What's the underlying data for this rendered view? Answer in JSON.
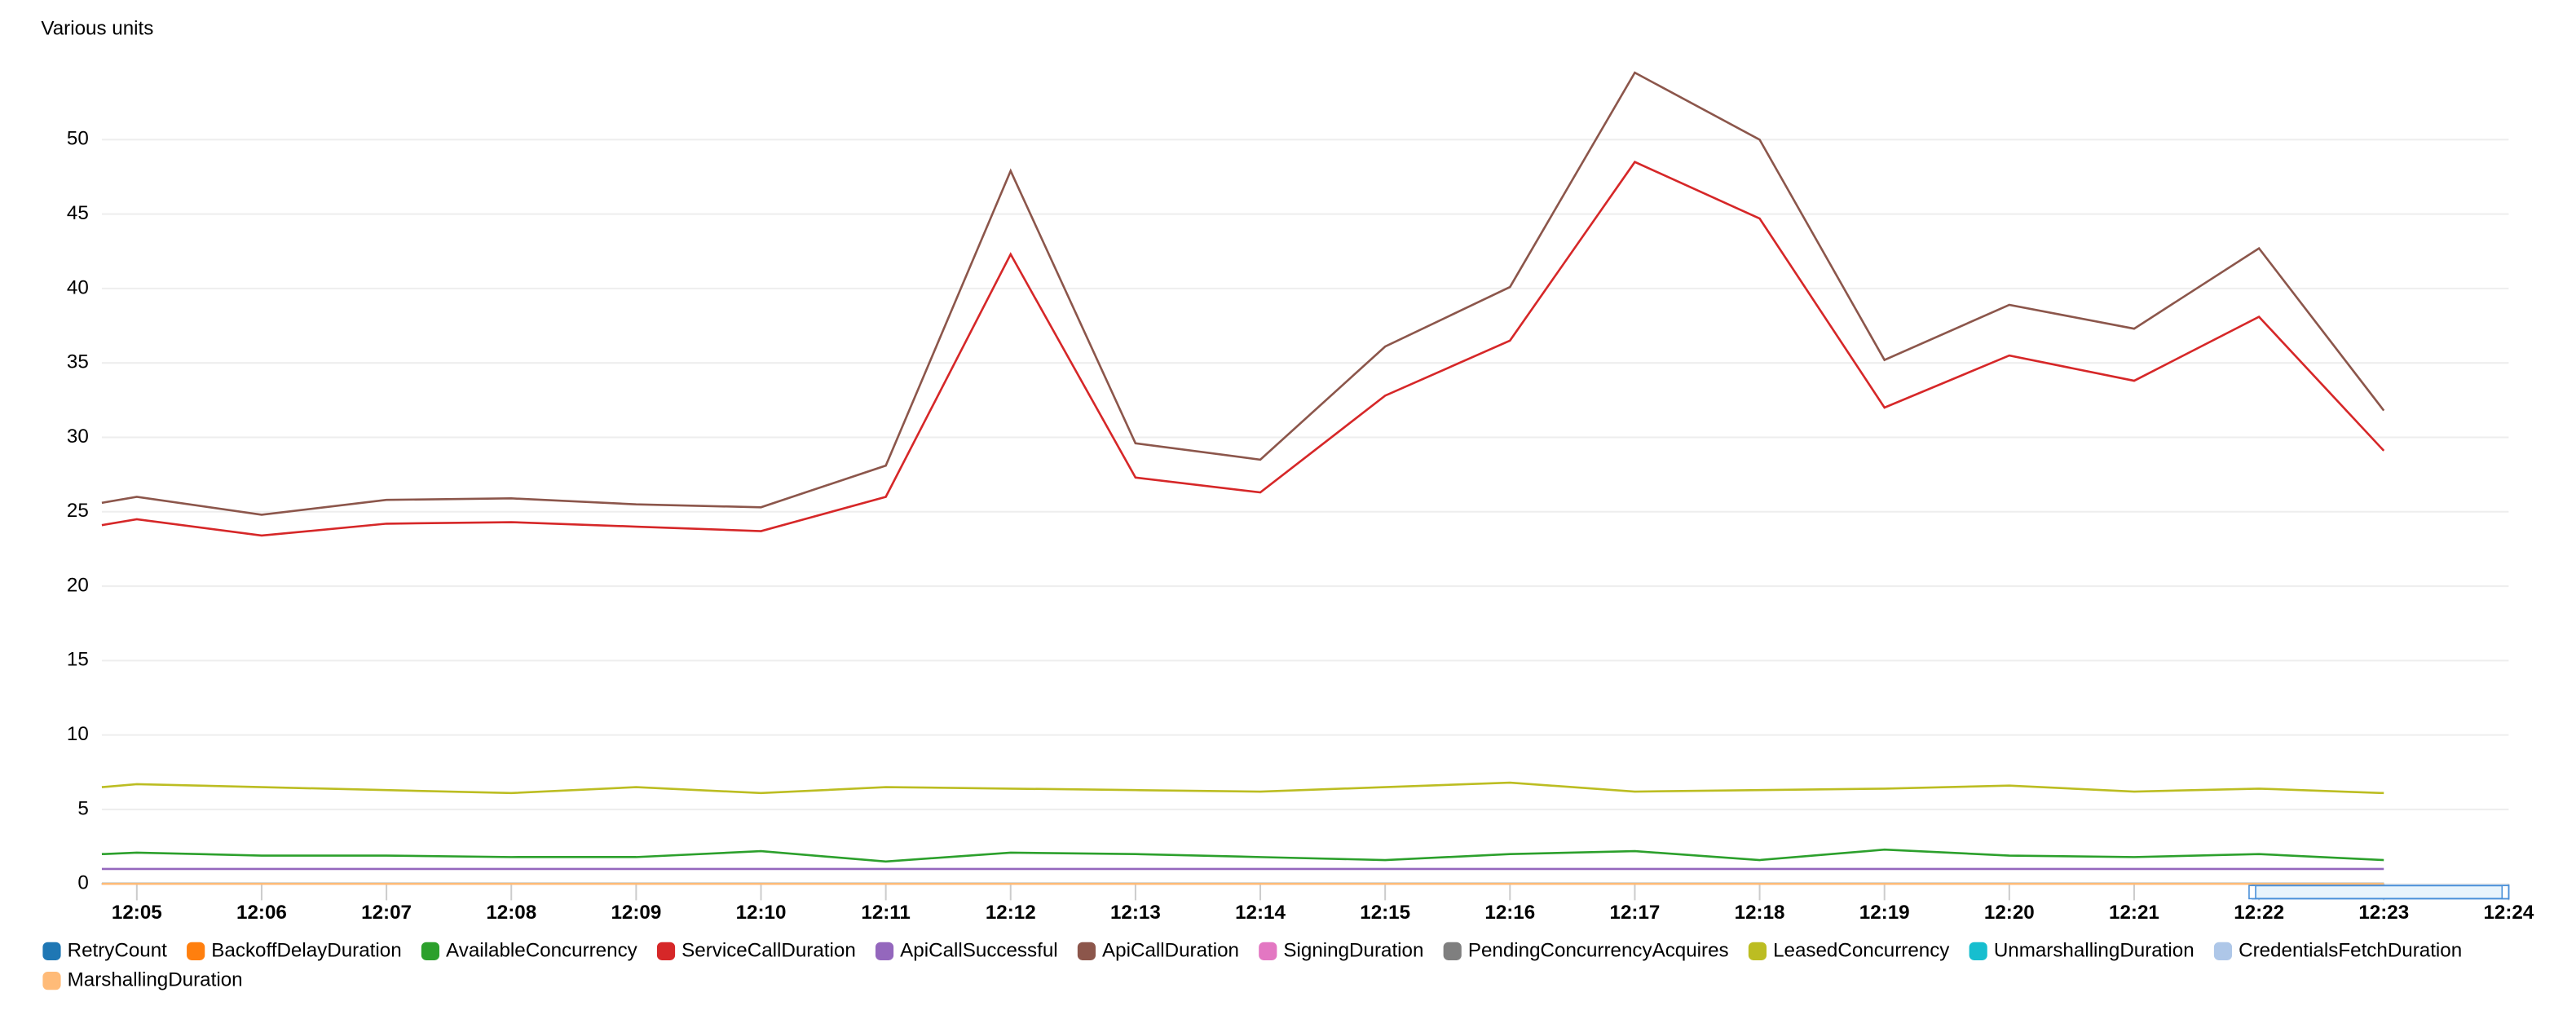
{
  "chart_data": {
    "type": "line",
    "ylabel": "Various units",
    "x": [
      4.72,
      5,
      6,
      7,
      8,
      9,
      10,
      11,
      12,
      13,
      14,
      15,
      16,
      17,
      18,
      19,
      20,
      21,
      22,
      23
    ],
    "xlim": [
      4.72,
      24
    ],
    "xticks": [
      {
        "value": 5,
        "label": "12:05"
      },
      {
        "value": 6,
        "label": "12:06"
      },
      {
        "value": 7,
        "label": "12:07"
      },
      {
        "value": 8,
        "label": "12:08"
      },
      {
        "value": 9,
        "label": "12:09"
      },
      {
        "value": 10,
        "label": "12:10"
      },
      {
        "value": 11,
        "label": "12:11"
      },
      {
        "value": 12,
        "label": "12:12"
      },
      {
        "value": 13,
        "label": "12:13"
      },
      {
        "value": 14,
        "label": "12:14"
      },
      {
        "value": 15,
        "label": "12:15"
      },
      {
        "value": 16,
        "label": "12:16"
      },
      {
        "value": 17,
        "label": "12:17"
      },
      {
        "value": 18,
        "label": "12:18"
      },
      {
        "value": 19,
        "label": "12:19"
      },
      {
        "value": 20,
        "label": "12:20"
      },
      {
        "value": 21,
        "label": "12:21"
      },
      {
        "value": 22,
        "label": "12:22"
      },
      {
        "value": 23,
        "label": "12:23"
      },
      {
        "value": 24,
        "label": "12:24"
      }
    ],
    "ylim": [
      0,
      55
    ],
    "yticks": [
      0,
      5,
      10,
      15,
      20,
      25,
      30,
      35,
      40,
      45,
      50
    ],
    "grid": true,
    "legend": "bottom",
    "series": [
      {
        "name": "RetryCount",
        "color": "#1f77b4",
        "values": [
          0,
          0,
          0,
          0,
          0,
          0,
          0,
          0,
          0,
          0,
          0,
          0,
          0,
          0,
          0,
          0,
          0,
          0,
          0,
          0
        ]
      },
      {
        "name": "BackoffDelayDuration",
        "color": "#ff7f0e",
        "values": [
          0,
          0,
          0,
          0,
          0,
          0,
          0,
          0,
          0,
          0,
          0,
          0,
          0,
          0,
          0,
          0,
          0,
          0,
          0,
          0
        ]
      },
      {
        "name": "AvailableConcurrency",
        "color": "#2ca02c",
        "values": [
          2.0,
          2.1,
          1.9,
          1.9,
          1.8,
          1.8,
          2.2,
          1.5,
          2.1,
          2.0,
          1.8,
          1.6,
          2.0,
          2.2,
          1.6,
          2.3,
          1.9,
          1.8,
          2.0,
          1.6
        ]
      },
      {
        "name": "ServiceCallDuration",
        "color": "#d62728",
        "values": [
          24.1,
          24.5,
          23.4,
          24.2,
          24.3,
          24.0,
          23.7,
          26.0,
          42.3,
          27.3,
          26.3,
          32.8,
          36.5,
          48.5,
          44.7,
          32.0,
          35.5,
          33.8,
          38.1,
          29.1
        ]
      },
      {
        "name": "ApiCallSuccessful",
        "color": "#9467bd",
        "values": [
          1,
          1,
          1,
          1,
          1,
          1,
          1,
          1,
          1,
          1,
          1,
          1,
          1,
          1,
          1,
          1,
          1,
          1,
          1,
          1
        ]
      },
      {
        "name": "ApiCallDuration",
        "color": "#8c564b",
        "values": [
          25.6,
          26.0,
          24.8,
          25.8,
          25.9,
          25.5,
          25.3,
          28.1,
          47.9,
          29.6,
          28.5,
          36.1,
          40.1,
          54.5,
          50.0,
          35.2,
          38.9,
          37.3,
          42.7,
          31.8
        ]
      },
      {
        "name": "SigningDuration",
        "color": "#e377c2",
        "values": [
          0,
          0,
          0,
          0,
          0,
          0,
          0,
          0,
          0,
          0,
          0,
          0,
          0,
          0,
          0,
          0,
          0,
          0,
          0,
          0
        ]
      },
      {
        "name": "PendingConcurrencyAcquires",
        "color": "#7f7f7f",
        "values": [
          0,
          0,
          0,
          0,
          0,
          0,
          0,
          0,
          0,
          0,
          0,
          0,
          0,
          0,
          0,
          0,
          0,
          0,
          0,
          0
        ]
      },
      {
        "name": "LeasedConcurrency",
        "color": "#bcbd22",
        "values": [
          6.5,
          6.7,
          6.5,
          6.3,
          6.1,
          6.5,
          6.1,
          6.5,
          6.4,
          6.3,
          6.2,
          6.5,
          6.8,
          6.2,
          6.3,
          6.4,
          6.6,
          6.2,
          6.4,
          6.1
        ]
      },
      {
        "name": "UnmarshallingDuration",
        "color": "#17becf",
        "values": [
          0,
          0,
          0,
          0,
          0,
          0,
          0,
          0,
          0,
          0,
          0,
          0,
          0,
          0,
          0,
          0,
          0,
          0,
          0,
          0
        ]
      },
      {
        "name": "CredentialsFetchDuration",
        "color": "#aec7e8",
        "values": [
          0,
          0,
          0,
          0,
          0,
          0,
          0,
          0,
          0,
          0,
          0,
          0,
          0,
          0,
          0,
          0,
          0,
          0,
          0,
          0
        ]
      },
      {
        "name": "MarshallingDuration",
        "color": "#ffbb78",
        "values": [
          0,
          0,
          0,
          0,
          0,
          0,
          0,
          0,
          0,
          0,
          0,
          0,
          0,
          0,
          0,
          0,
          0,
          0,
          0,
          0
        ]
      }
    ]
  }
}
